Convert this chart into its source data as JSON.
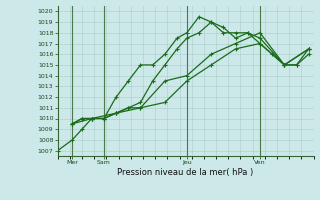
{
  "title": "Pression niveau de la mer( hPa )",
  "xlim": [
    0,
    10.5
  ],
  "ylim": [
    1006.5,
    1020.5
  ],
  "yticks": [
    1007,
    1008,
    1009,
    1010,
    1011,
    1012,
    1013,
    1014,
    1015,
    1016,
    1017,
    1018,
    1019,
    1020
  ],
  "xtick_positions": [
    0.6,
    1.9,
    5.3,
    8.3
  ],
  "xtick_labels": [
    "Mer",
    "Sam",
    "Jeu",
    "Ven"
  ],
  "vline_positions": [
    0.6,
    1.9,
    5.3,
    8.3
  ],
  "bg_color": "#cce8e8",
  "grid_color": "#aacece",
  "line_color": "#1a6b1a",
  "marker": "P",
  "markersize": 2.8,
  "linewidth": 0.9,
  "lines": [
    {
      "x": [
        0.0,
        0.6,
        1.0,
        1.4,
        1.9,
        2.4,
        2.9,
        3.4,
        3.9,
        4.4,
        4.9,
        5.3,
        5.8,
        6.3,
        6.8,
        7.3,
        7.8,
        8.3,
        8.8,
        9.3,
        9.8,
        10.3
      ],
      "y": [
        1007,
        1008,
        1009,
        1010,
        1010,
        1012,
        1013.5,
        1015,
        1015,
        1016,
        1017.5,
        1018,
        1019.5,
        1019,
        1018.5,
        1017.5,
        1018,
        1017,
        1016,
        1015,
        1015,
        1016.5
      ]
    },
    {
      "x": [
        0.6,
        1.0,
        1.4,
        1.9,
        2.4,
        2.9,
        3.4,
        3.9,
        4.4,
        4.9,
        5.3,
        5.8,
        6.3,
        6.8,
        7.3,
        7.8,
        8.3,
        9.3,
        9.8,
        10.3
      ],
      "y": [
        1009.5,
        1010,
        1010,
        1010,
        1010.5,
        1011,
        1011.5,
        1013.5,
        1015,
        1016.5,
        1017.5,
        1018,
        1019,
        1018,
        1018,
        1018,
        1017.5,
        1015,
        1015,
        1016
      ]
    },
    {
      "x": [
        0.6,
        1.0,
        1.4,
        1.9,
        2.4,
        2.9,
        3.4,
        4.4,
        5.3,
        6.3,
        7.3,
        8.3,
        9.3,
        10.3
      ],
      "y": [
        1009.5,
        1010,
        1010,
        1010,
        1010.5,
        1011,
        1011,
        1013.5,
        1014,
        1016,
        1017,
        1018,
        1015,
        1016.5
      ]
    },
    {
      "x": [
        0.6,
        1.4,
        2.4,
        3.4,
        4.4,
        5.3,
        6.3,
        7.3,
        8.3,
        9.3,
        10.3
      ],
      "y": [
        1009.5,
        1010,
        1010.5,
        1011,
        1011.5,
        1013.5,
        1015,
        1016.5,
        1017,
        1015,
        1016.5
      ]
    }
  ]
}
